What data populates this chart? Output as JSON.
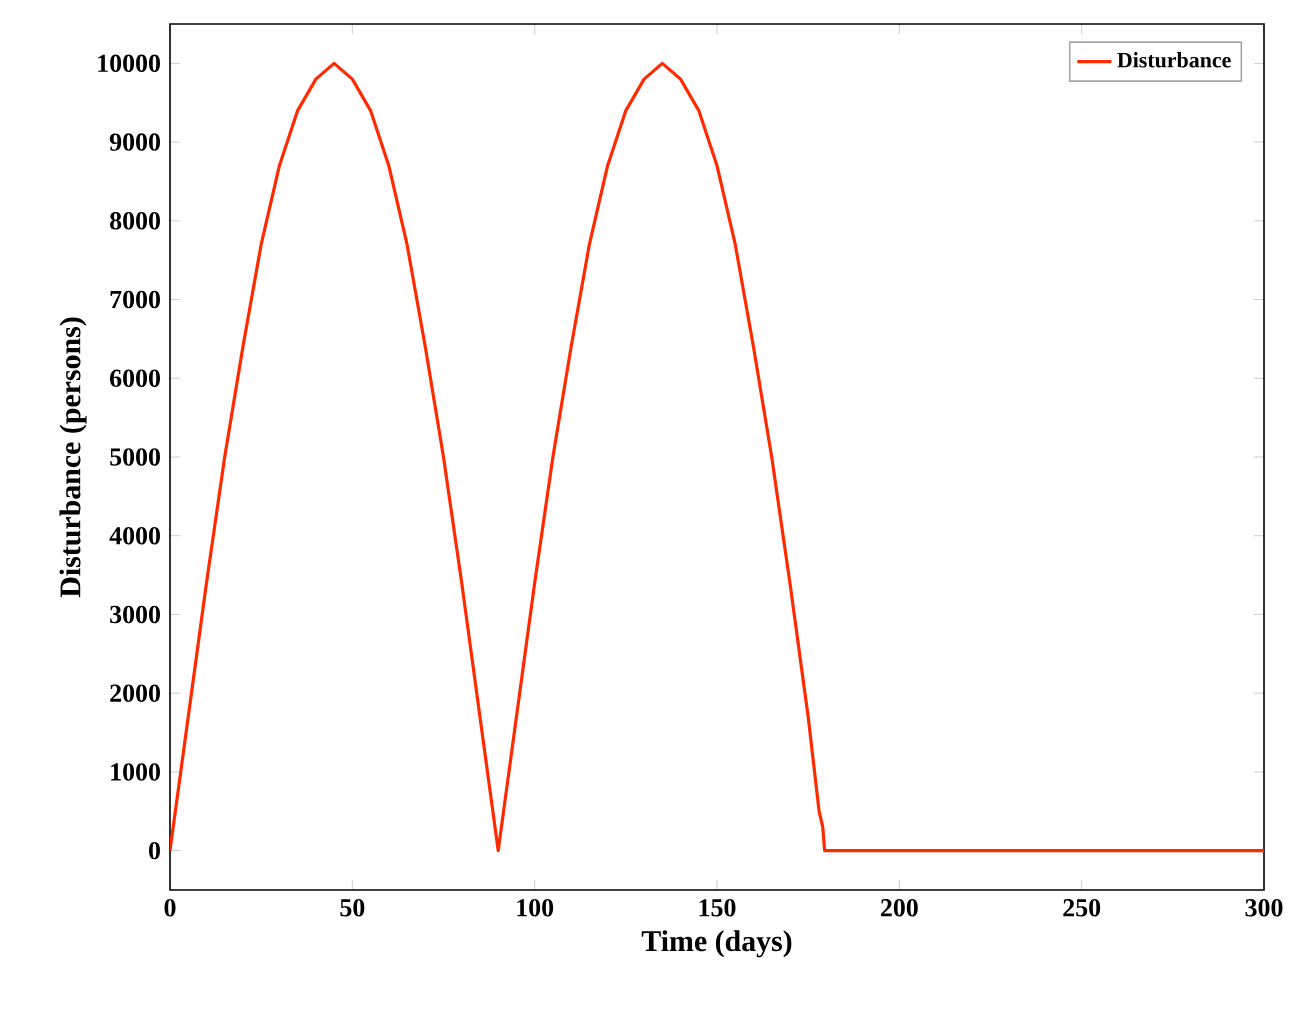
{
  "chart_data": {
    "type": "line",
    "xlabel": "Time (days)",
    "ylabel": "Disturbance (persons)",
    "xlim": [
      0,
      300
    ],
    "ylim": [
      -500,
      10500
    ],
    "xticks": [
      0,
      50,
      100,
      150,
      200,
      250,
      300
    ],
    "yticks": [
      0,
      1000,
      2000,
      3000,
      4000,
      5000,
      6000,
      7000,
      8000,
      9000,
      10000
    ],
    "legend": "top right",
    "grid": false,
    "marker": "none",
    "line_style": "solid",
    "series": [
      {
        "name": "Disturbance",
        "color": "#ff2a00",
        "x": [
          0,
          5,
          10,
          15,
          20,
          25,
          30,
          35,
          40,
          45,
          50,
          55,
          60,
          65,
          70,
          75,
          80,
          85,
          90,
          95,
          100,
          105,
          110,
          115,
          120,
          125,
          130,
          135,
          140,
          145,
          150,
          155,
          160,
          165,
          170,
          175,
          178,
          179,
          179.5,
          200,
          250,
          300
        ],
        "values": [
          0,
          1700,
          3400,
          5000,
          6400,
          7700,
          8700,
          9400,
          9800,
          10000,
          9800,
          9400,
          8700,
          7700,
          6400,
          5000,
          3400,
          1700,
          0,
          1700,
          3400,
          5000,
          6400,
          7700,
          8700,
          9400,
          9800,
          10000,
          9800,
          9400,
          8700,
          7700,
          6400,
          5000,
          3400,
          1700,
          500,
          300,
          0,
          0,
          0,
          0
        ]
      }
    ]
  }
}
